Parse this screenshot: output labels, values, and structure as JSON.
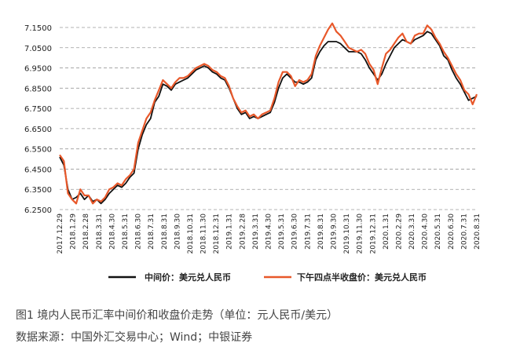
{
  "figure": {
    "caption": "图1 境内人民币汇率中间价和收盘价走势（单位：元人民币/美元）",
    "source": "数据来源：中国外汇交易中心；Wind；中银证券"
  },
  "colors": {
    "mid": "#111111",
    "close": "#e8582a",
    "grid": "#9a9a9a"
  },
  "chart_data": {
    "type": "line",
    "title": "",
    "xlabel": "",
    "ylabel": "",
    "ylim": [
      6.25,
      7.18
    ],
    "y_ticks": [
      "7.1500",
      "7.0500",
      "6.9500",
      "6.8500",
      "6.7500",
      "6.6500",
      "6.5500",
      "6.4500",
      "6.3500",
      "6.2500"
    ],
    "x_ticks": [
      "2017.12.29",
      "2018.1.29",
      "2018.2.28",
      "2018.3.31",
      "2018.4.30",
      "2018.5.31",
      "2018.6.30",
      "2018.7.31",
      "2018.8.31",
      "2018.9.30",
      "2018.10.31",
      "2018.11.30",
      "2018.12.31",
      "2019.1.31",
      "2019.2.28",
      "2019.3.31",
      "2019.4.30",
      "2019.5.31",
      "2019.6.30",
      "2019.7.31",
      "2019.8.31",
      "2019.9.30",
      "2019.10.31",
      "2019.11.30",
      "2019.12.31",
      "2020.1.31",
      "2020.2.29",
      "2020.3.31",
      "2020.4.30",
      "2020.5.31",
      "2020.6.30",
      "2020.7.31",
      "2020.8.31"
    ],
    "grid": "horizontal dashed",
    "legend": "bottom",
    "series": [
      {
        "name": "中间价：美元兑人民币",
        "color": "#111111",
        "values": [
          6.51,
          6.47,
          6.35,
          6.3,
          6.31,
          6.33,
          6.3,
          6.32,
          6.29,
          6.3,
          6.28,
          6.3,
          6.33,
          6.35,
          6.37,
          6.36,
          6.38,
          6.41,
          6.43,
          6.55,
          6.62,
          6.67,
          6.7,
          6.78,
          6.81,
          6.87,
          6.86,
          6.84,
          6.87,
          6.88,
          6.89,
          6.9,
          6.92,
          6.94,
          6.95,
          6.96,
          6.95,
          6.93,
          6.92,
          6.9,
          6.89,
          6.85,
          6.8,
          6.75,
          6.72,
          6.73,
          6.7,
          6.71,
          6.7,
          6.71,
          6.72,
          6.73,
          6.78,
          6.85,
          6.9,
          6.92,
          6.9,
          6.88,
          6.88,
          6.87,
          6.88,
          6.9,
          6.99,
          7.03,
          7.06,
          7.08,
          7.08,
          7.08,
          7.07,
          7.05,
          7.03,
          7.03,
          7.03,
          7.02,
          6.99,
          6.95,
          6.92,
          6.89,
          6.92,
          6.97,
          7.01,
          7.05,
          7.07,
          7.09,
          7.08,
          7.07,
          7.09,
          7.1,
          7.11,
          7.13,
          7.12,
          7.09,
          7.06,
          7.01,
          6.99,
          6.94,
          6.9,
          6.87,
          6.83,
          6.79,
          6.8,
          6.81
        ]
      },
      {
        "name": "下午四点半收盘价：美元兑人民币",
        "color": "#e8582a",
        "values": [
          6.52,
          6.49,
          6.33,
          6.3,
          6.28,
          6.35,
          6.32,
          6.32,
          6.28,
          6.3,
          6.29,
          6.31,
          6.35,
          6.36,
          6.38,
          6.37,
          6.4,
          6.42,
          6.45,
          6.58,
          6.64,
          6.7,
          6.73,
          6.79,
          6.84,
          6.89,
          6.87,
          6.85,
          6.88,
          6.9,
          6.9,
          6.91,
          6.93,
          6.95,
          6.96,
          6.97,
          6.96,
          6.94,
          6.93,
          6.91,
          6.9,
          6.86,
          6.8,
          6.76,
          6.73,
          6.74,
          6.71,
          6.72,
          6.7,
          6.72,
          6.73,
          6.74,
          6.8,
          6.88,
          6.93,
          6.93,
          6.91,
          6.86,
          6.89,
          6.88,
          6.89,
          6.92,
          7.01,
          7.06,
          7.1,
          7.14,
          7.17,
          7.13,
          7.11,
          7.08,
          7.05,
          7.04,
          7.03,
          7.04,
          7.02,
          6.97,
          6.94,
          6.87,
          6.95,
          7.02,
          7.04,
          7.07,
          7.1,
          7.12,
          7.08,
          7.07,
          7.11,
          7.12,
          7.12,
          7.16,
          7.14,
          7.1,
          7.07,
          7.03,
          7.0,
          6.96,
          6.92,
          6.89,
          6.84,
          6.82,
          6.77,
          6.82
        ]
      }
    ]
  }
}
